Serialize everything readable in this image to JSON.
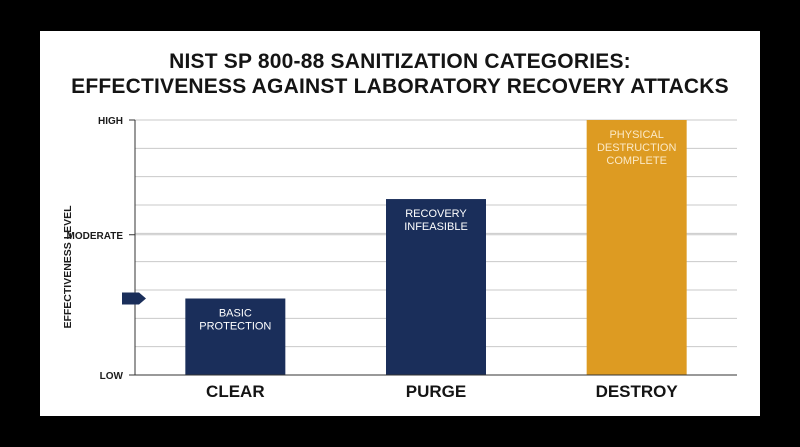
{
  "chart_data": {
    "type": "bar",
    "title": [
      "NIST SP 800-88 SANITIZATION CATEGORIES:",
      "EFFECTIVENESS AGAINST LABORATORY RECOVERY ATTACKS"
    ],
    "ylabel": "EFFECTIVENESS LEVEL",
    "xlabel": "",
    "y_ticks": [
      {
        "label": "HIGH",
        "value": 1.0
      },
      {
        "label": "MODERATE",
        "value": 0.55
      },
      {
        "label": "LOW",
        "value": 0.0
      }
    ],
    "ylim": [
      0,
      1
    ],
    "grid": true,
    "marker_value": 0.3,
    "categories": [
      "CLEAR",
      "PURGE",
      "DESTROY"
    ],
    "values": [
      0.3,
      0.69,
      1.0
    ],
    "bar_labels": [
      [
        "BASIC",
        "PROTECTION"
      ],
      [
        "RECOVERY",
        "INFEASIBLE"
      ],
      [
        "PHYSICAL",
        "DESTRUCTION",
        "COMPLETE"
      ]
    ],
    "colors": [
      "#1a2e5a",
      "#1a2e5a",
      "#dd9b22"
    ],
    "label_colors": [
      "#ffffff",
      "#ffffff",
      "#fbe9c6"
    ],
    "grid_color": "#c9c9c9",
    "axis_color": "#333333"
  }
}
